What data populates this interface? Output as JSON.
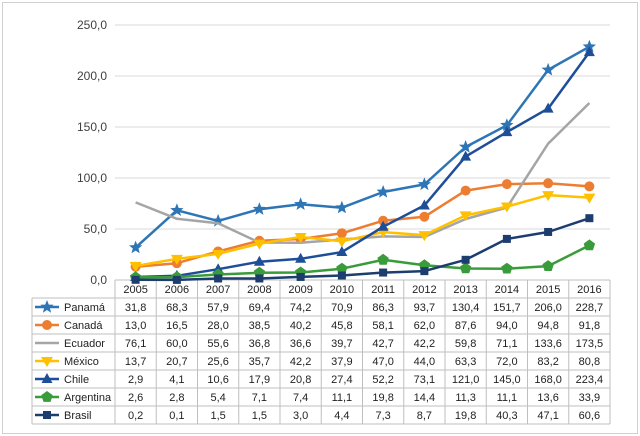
{
  "chart_data": {
    "type": "line",
    "title": "",
    "xlabel": "",
    "ylabel": "",
    "ylim": [
      0,
      250
    ],
    "yticks": [
      "0,0",
      "50,0",
      "100,0",
      "150,0",
      "200,0",
      "250,0"
    ],
    "grid": true,
    "legend_placement": "data-table-left",
    "categories": [
      "2005",
      "2006",
      "2007",
      "2008",
      "2009",
      "2010",
      "2011",
      "2012",
      "2013",
      "2014",
      "2015",
      "2016"
    ],
    "series": [
      {
        "name": "Panamá",
        "color": "#2e75b6",
        "marker": "star",
        "values": [
          31.8,
          68.3,
          57.9,
          69.4,
          74.2,
          70.9,
          86.3,
          93.7,
          130.4,
          151.7,
          206.0,
          228.7
        ],
        "labels": [
          "31,8",
          "68,3",
          "57,9",
          "69,4",
          "74,2",
          "70,9",
          "86,3",
          "93,7",
          "130,4",
          "151,7",
          "206,0",
          "228,7"
        ]
      },
      {
        "name": "Canadá",
        "color": "#ed7d31",
        "marker": "circle",
        "values": [
          13.0,
          16.5,
          28.0,
          38.5,
          40.2,
          45.8,
          58.1,
          62.0,
          87.6,
          94.0,
          94.8,
          91.8
        ],
        "labels": [
          "13,0",
          "16,5",
          "28,0",
          "38,5",
          "40,2",
          "45,8",
          "58,1",
          "62,0",
          "87,6",
          "94,0",
          "94,8",
          "91,8"
        ]
      },
      {
        "name": "Ecuador",
        "color": "#a5a5a5",
        "marker": "none",
        "values": [
          76.1,
          60.0,
          55.6,
          36.8,
          36.6,
          39.7,
          42.7,
          42.2,
          59.8,
          71.1,
          133.6,
          173.5
        ],
        "labels": [
          "76,1",
          "60,0",
          "55,6",
          "36,8",
          "36,6",
          "39,7",
          "42,7",
          "42,2",
          "59,8",
          "71,1",
          "133,6",
          "173,5"
        ]
      },
      {
        "name": "México",
        "color": "#ffc000",
        "marker": "triangle-down",
        "values": [
          13.7,
          20.7,
          25.6,
          35.7,
          42.2,
          37.9,
          47.0,
          44.0,
          63.3,
          72.0,
          83.2,
          80.8
        ],
        "labels": [
          "13,7",
          "20,7",
          "25,6",
          "35,7",
          "42,2",
          "37,9",
          "47,0",
          "44,0",
          "63,3",
          "72,0",
          "83,2",
          "80,8"
        ]
      },
      {
        "name": "Chile",
        "color": "#1f4e99",
        "marker": "triangle-up",
        "values": [
          2.9,
          4.1,
          10.6,
          17.9,
          20.8,
          27.4,
          52.2,
          73.1,
          121.0,
          145.0,
          168.0,
          223.4
        ],
        "labels": [
          "2,9",
          "4,1",
          "10,6",
          "17,9",
          "20,8",
          "27,4",
          "52,2",
          "73,1",
          "121,0",
          "145,0",
          "168,0",
          "223,4"
        ]
      },
      {
        "name": "Argentina",
        "color": "#3a9b3a",
        "marker": "pentagon",
        "values": [
          2.6,
          2.8,
          5.4,
          7.1,
          7.4,
          11.1,
          19.8,
          14.4,
          11.3,
          11.1,
          13.6,
          33.9
        ],
        "labels": [
          "2,6",
          "2,8",
          "5,4",
          "7,1",
          "7,4",
          "11,1",
          "19,8",
          "14,4",
          "11,3",
          "11,1",
          "13,6",
          "33,9"
        ]
      },
      {
        "name": "Brasil",
        "color": "#1c3d6e",
        "marker": "square",
        "values": [
          0.2,
          0.1,
          1.5,
          1.5,
          3.0,
          4.4,
          7.3,
          8.7,
          19.8,
          40.3,
          47.1,
          60.6
        ],
        "labels": [
          "0,2",
          "0,1",
          "1,5",
          "1,5",
          "3,0",
          "4,4",
          "7,3",
          "8,7",
          "19,8",
          "40,3",
          "47,1",
          "60,6"
        ]
      }
    ]
  }
}
